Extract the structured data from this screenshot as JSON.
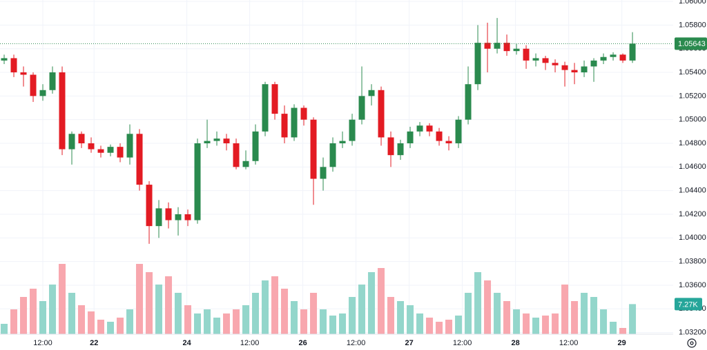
{
  "chart_data": {
    "type": "candlestick",
    "open": [
      1.055,
      1.0552,
      1.054,
      1.0538,
      1.052,
      1.0525,
      1.054,
      1.0475,
      1.0488,
      1.048,
      1.0475,
      1.0472,
      1.0477,
      1.0468,
      1.0488,
      1.0445,
      1.041,
      1.0425,
      1.0415,
      1.042,
      1.0415,
      1.048,
      1.0482,
      1.0484,
      1.048,
      1.046,
      1.0465,
      1.049,
      1.053,
      1.0505,
      1.0485,
      1.051,
      1.05,
      1.045,
      1.046,
      1.048,
      1.0482,
      1.05,
      1.052,
      1.0525,
      1.0485,
      1.047,
      1.048,
      1.049,
      1.0495,
      1.049,
      1.0482,
      1.048,
      1.05,
      1.053,
      1.0565,
      1.056,
      1.0565,
      1.0558,
      1.056,
      1.055,
      1.0552,
      1.0548,
      1.0546,
      1.0542,
      1.054,
      1.0545,
      1.055,
      1.0553,
      1.0555,
      1.055
    ],
    "high": [
      1.0555,
      1.0555,
      1.0545,
      1.054,
      1.053,
      1.0545,
      1.0545,
      1.049,
      1.049,
      1.0485,
      1.0478,
      1.0479,
      1.048,
      1.0496,
      1.0492,
      1.0448,
      1.0432,
      1.043,
      1.0426,
      1.0424,
      1.0484,
      1.05,
      1.049,
      1.0488,
      1.0484,
      1.0474,
      1.0496,
      1.0532,
      1.0532,
      1.0512,
      1.0513,
      1.0512,
      1.0502,
      1.0468,
      1.0485,
      1.049,
      1.0505,
      1.0545,
      1.053,
      1.0528,
      1.049,
      1.0483,
      1.0494,
      1.0498,
      1.0497,
      1.0493,
      1.0486,
      1.0503,
      1.0545,
      1.058,
      1.0582,
      1.0586,
      1.0572,
      1.0564,
      1.0563,
      1.0556,
      1.0554,
      1.0551,
      1.0549,
      1.0548,
      1.055,
      1.0552,
      1.0556,
      1.0557,
      1.0556,
      1.0574
    ],
    "low": [
      1.0547,
      1.0536,
      1.0528,
      1.0515,
      1.0516,
      1.0522,
      1.047,
      1.0462,
      1.0476,
      1.0472,
      1.0468,
      1.0469,
      1.0464,
      1.0462,
      1.044,
      1.0395,
      1.04,
      1.0408,
      1.0402,
      1.041,
      1.0412,
      1.0476,
      1.0478,
      1.0474,
      1.0458,
      1.0458,
      1.0462,
      1.0486,
      1.05,
      1.048,
      1.0482,
      1.0495,
      1.0428,
      1.044,
      1.0456,
      1.0476,
      1.0478,
      1.0496,
      1.0512,
      1.0478,
      1.046,
      1.0466,
      1.0476,
      1.0486,
      1.0486,
      1.0478,
      1.0474,
      1.0476,
      1.0496,
      1.0525,
      1.054,
      1.0556,
      1.0554,
      1.0555,
      1.0543,
      1.0545,
      1.0542,
      1.054,
      1.0528,
      1.053,
      1.0536,
      1.0532,
      1.0547,
      1.055,
      1.0548,
      1.0548
    ],
    "close": [
      1.0552,
      1.054,
      1.0538,
      1.052,
      1.0525,
      1.054,
      1.0475,
      1.0488,
      1.048,
      1.0475,
      1.0472,
      1.0477,
      1.0468,
      1.0488,
      1.0445,
      1.041,
      1.0425,
      1.0415,
      1.042,
      1.0415,
      1.048,
      1.0482,
      1.0484,
      1.048,
      1.046,
      1.0465,
      1.049,
      1.053,
      1.0505,
      1.0485,
      1.051,
      1.05,
      1.045,
      1.046,
      1.048,
      1.0482,
      1.05,
      1.052,
      1.0525,
      1.0485,
      1.047,
      1.048,
      1.049,
      1.0495,
      1.049,
      1.0482,
      1.048,
      1.05,
      1.053,
      1.0565,
      1.056,
      1.0565,
      1.0558,
      1.056,
      1.055,
      1.0552,
      1.0548,
      1.0546,
      1.0542,
      1.054,
      1.0545,
      1.055,
      1.0553,
      1.0555,
      1.055,
      1.05643
    ],
    "volume": [
      2500,
      6000,
      9000,
      11000,
      8000,
      12000,
      17000,
      10000,
      7000,
      5500,
      3500,
      3000,
      4000,
      6000,
      17000,
      15000,
      12000,
      14000,
      10000,
      7000,
      5000,
      6000,
      4000,
      5000,
      6000,
      7000,
      10000,
      13000,
      14000,
      11000,
      8000,
      6000,
      10000,
      6000,
      4500,
      5000,
      9000,
      12000,
      15000,
      16000,
      9000,
      8000,
      7000,
      5000,
      4000,
      3000,
      3500,
      4500,
      10000,
      15000,
      13000,
      10000,
      8000,
      6000,
      5000,
      4000,
      4500,
      5000,
      12000,
      8000,
      10000,
      9000,
      6000,
      3000,
      1500,
      7270
    ],
    "last_close_label": "1.05643",
    "last_volume_label": "7.27K",
    "up_color": "#2a8a4e",
    "down_color": "#e31b23",
    "volume_up_color": "#93d6cb",
    "volume_down_color": "#f8a7ae",
    "ylim": [
      1.03186,
      1.06012
    ],
    "yticks": [
      {
        "value": 1.032,
        "label": "1.03200"
      },
      {
        "value": 1.034,
        "label": "1.03400"
      },
      {
        "value": 1.036,
        "label": "1.03600"
      },
      {
        "value": 1.038,
        "label": "1.03800"
      },
      {
        "value": 1.04,
        "label": "1.04000"
      },
      {
        "value": 1.042,
        "label": "1.04200"
      },
      {
        "value": 1.044,
        "label": "1.04400"
      },
      {
        "value": 1.046,
        "label": "1.04600"
      },
      {
        "value": 1.048,
        "label": "1.04800"
      },
      {
        "value": 1.05,
        "label": "1.05000"
      },
      {
        "value": 1.052,
        "label": "1.05200"
      },
      {
        "value": 1.054,
        "label": "1.05400"
      },
      {
        "value": 1.056,
        "label": "1.05600"
      },
      {
        "value": 1.058,
        "label": "1.05800"
      },
      {
        "value": 1.06,
        "label": "1.06000"
      }
    ],
    "volume_ylim": [
      0,
      25000
    ],
    "xlim": [
      -0.43,
      69.21
    ],
    "xticks": [
      {
        "value": 4,
        "label": "12:00"
      },
      {
        "value": 9.3,
        "label": "22"
      },
      {
        "value": 18.9,
        "label": "24"
      },
      {
        "value": 25.4,
        "label": "12:00"
      },
      {
        "value": 30.9,
        "label": "26"
      },
      {
        "value": 36.4,
        "label": "12:00"
      },
      {
        "value": 41.9,
        "label": "27"
      },
      {
        "value": 47.4,
        "label": "12:00"
      },
      {
        "value": 52.9,
        "label": "28"
      },
      {
        "value": 58.4,
        "label": "12:00"
      },
      {
        "value": 63.9,
        "label": "29"
      }
    ],
    "grid": true
  }
}
